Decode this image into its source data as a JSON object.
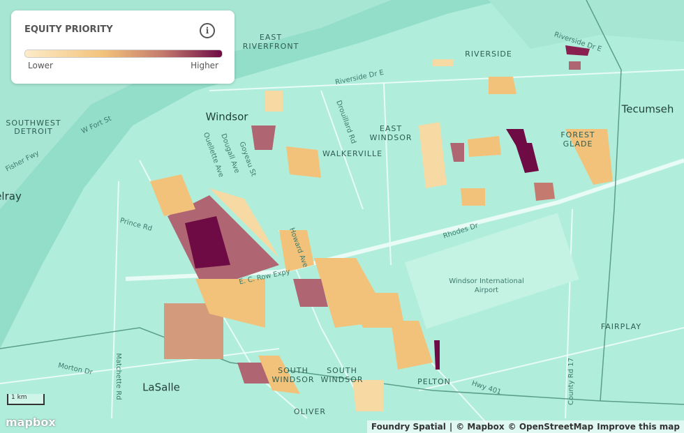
{
  "legend": {
    "title": "EQUITY PRIORITY",
    "low": "Lower",
    "high": "Higher"
  },
  "places": [
    "EAST",
    "RIVERFRONT",
    "SOUTHWEST",
    "DETROIT",
    "Windsor",
    "Tecumseh",
    "RIVERSIDE",
    "EAST",
    "WINDSOR",
    "WALKERVILLE",
    "FOREST",
    "GLADE",
    "elray",
    "Windsor International",
    "Airport",
    "FAIRPLAY",
    "SOUTH",
    "WINDSOR",
    "SOUTH",
    "WINDSOR",
    "PELTON",
    "LaSalle",
    "OLIVER"
  ],
  "roads": [
    "Riverside Dr E",
    "Riverside Dr E",
    "W Fort St",
    "Fisher Fwy",
    "Prince Rd",
    "Dougall Ave",
    "Ouellette Ave",
    "Goyeau St",
    "Drouillard Rd",
    "Howard Ave",
    "E. C. Row Expy",
    "Rhodes Dr",
    "Matchette Rd",
    "Morton Dr",
    "Hwy 401",
    "County Rd 17"
  ],
  "scale": "1 km",
  "logo": "mapbox",
  "attribution": [
    "Foundry Spatial",
    "|",
    "© Mapbox",
    "© OpenStreetMap",
    "Improve this map"
  ]
}
